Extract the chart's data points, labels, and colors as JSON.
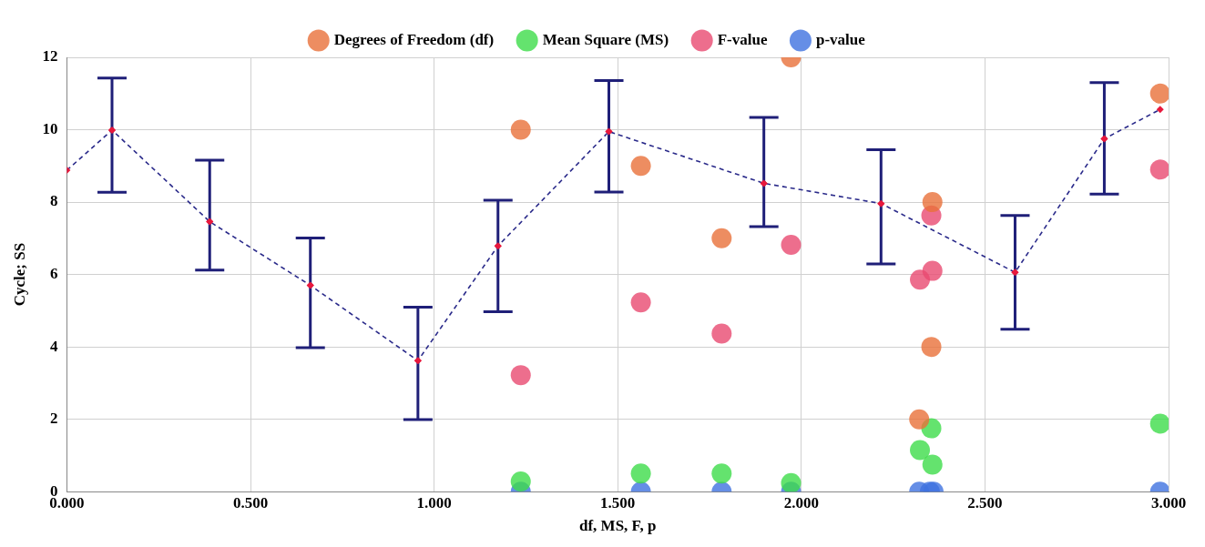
{
  "chart_data": {
    "type": "scatter",
    "xlabel": "df, MS, F, p",
    "ylabel": "Cycle; SS",
    "xlim": [
      0,
      3
    ],
    "xticks": [
      {
        "value": 0,
        "label": "0.000"
      },
      {
        "value": 0.5,
        "label": "0.500"
      },
      {
        "value": 1,
        "label": "1.000"
      },
      {
        "value": 1.5,
        "label": "1.500"
      },
      {
        "value": 2,
        "label": "2.000"
      },
      {
        "value": 2.5,
        "label": "2.500"
      },
      {
        "value": 3,
        "label": "3.000"
      }
    ],
    "ylim": [
      0,
      12
    ],
    "yticks": [
      0,
      2,
      4,
      6,
      8,
      10,
      12
    ],
    "grid": true,
    "legend": "top",
    "marker": "circle",
    "series": [
      {
        "type": "line",
        "color": "#2a2a8a",
        "colors": [
          "#e8183c",
          "#e8183c",
          "#e8183c",
          "#e8183c",
          "#e8183c",
          "#e8183c",
          "#e8183c",
          "#e8183c",
          "#e8183c",
          "#e8183c",
          "#e8183c",
          "#e8183c"
        ],
        "line_style": "dashed",
        "marker": "diamond",
        "x": [
          0,
          0.123,
          0.389,
          0.663,
          0.956,
          1.174,
          1.476,
          1.898,
          2.217,
          2.582,
          2.825,
          2.977
        ],
        "values": [
          8.88,
          9.99,
          7.46,
          5.7,
          3.62,
          6.79,
          9.95,
          8.52,
          7.96,
          6.06,
          9.75,
          10.56
        ],
        "errors": [
          null,
          [
            8.27,
            11.43
          ],
          [
            6.12,
            9.16
          ],
          [
            3.98,
            7.01
          ],
          [
            1.99,
            5.1
          ],
          [
            4.97,
            8.05
          ],
          [
            8.28,
            11.36
          ],
          [
            7.32,
            10.34
          ],
          [
            6.29,
            9.45
          ],
          [
            4.49,
            7.63
          ],
          [
            8.22,
            11.3
          ],
          null
        ]
      },
      {
        "name": "Degrees of Freedom (df)",
        "color": "#e8703a",
        "x": [
          1.236,
          1.563,
          1.783,
          1.972,
          2.321,
          2.357,
          2.354,
          2.977
        ],
        "values": [
          10,
          9,
          7,
          12,
          2,
          8,
          4,
          11
        ]
      },
      {
        "name": "Mean Square (MS)",
        "color": "#3ddc4a",
        "x": [
          1.236,
          1.563,
          1.783,
          1.972,
          2.323,
          2.354,
          2.357,
          2.977
        ],
        "values": [
          0.28,
          0.5,
          0.5,
          0.24,
          1.15,
          1.75,
          0.75,
          1.88
        ]
      },
      {
        "name": "F-value",
        "color": "#e84a70",
        "x": [
          1.236,
          1.563,
          1.783,
          1.972,
          2.323,
          2.354,
          2.357,
          2.977
        ],
        "values": [
          3.22,
          5.23,
          4.37,
          6.82,
          5.86,
          7.63,
          6.1,
          8.9
        ]
      },
      {
        "name": "p-value",
        "color": "#3f72e0",
        "x": [
          1.236,
          1.563,
          1.783,
          1.972,
          2.321,
          2.35,
          2.36,
          2.977
        ],
        "values": [
          0,
          0,
          0,
          0,
          0,
          0,
          0,
          0
        ]
      }
    ]
  }
}
